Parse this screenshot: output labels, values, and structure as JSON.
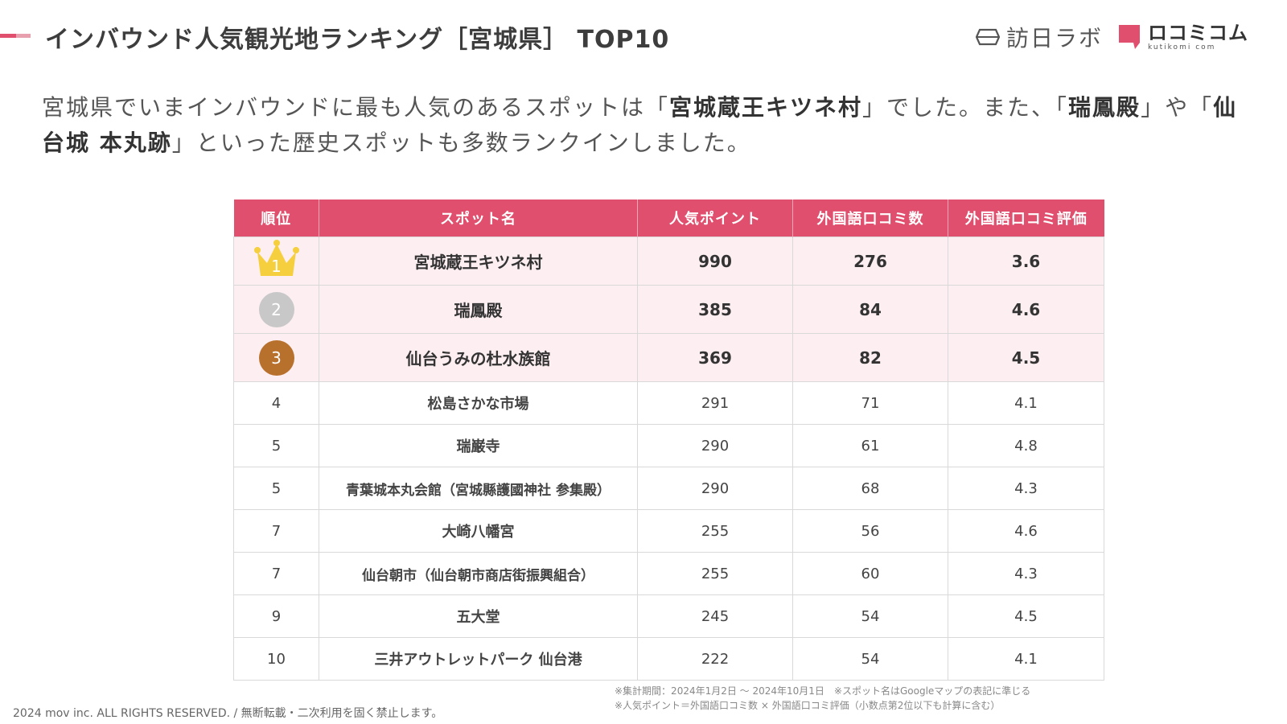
{
  "header": {
    "title": "インバウンド人気観光地ランキング［宮城県］ TOP10",
    "logo_houjitsu": "訪日ラボ",
    "logo_kuchikomi": "ロコミコム",
    "logo_kuchikomi_sub": "kutikomi com"
  },
  "lead": {
    "p1": "宮城県でいまインバウンドに最も人気のあるスポットは「",
    "b1": "宮城蔵王キツネ村",
    "p2": "」でした。また、「",
    "b2": "瑞鳳殿",
    "p3": "」や「",
    "b3": "仙台城 本丸跡",
    "p4": "」といった歴史スポットも多数ランクインしました。"
  },
  "table": {
    "headers": [
      "順位",
      "スポット名",
      "人気ポイント",
      "外国語口コミ数",
      "外国語口コミ評価"
    ],
    "rows": [
      {
        "rank": "1",
        "name": "宮城蔵王キツネ村",
        "points": "990",
        "reviews": "276",
        "rating": "3.6"
      },
      {
        "rank": "2",
        "name": "瑞鳳殿",
        "points": "385",
        "reviews": "84",
        "rating": "4.6"
      },
      {
        "rank": "3",
        "name": "仙台うみの杜水族館",
        "points": "369",
        "reviews": "82",
        "rating": "4.5"
      },
      {
        "rank": "4",
        "name": "松島さかな市場",
        "points": "291",
        "reviews": "71",
        "rating": "4.1"
      },
      {
        "rank": "5",
        "name": "瑞巌寺",
        "points": "290",
        "reviews": "61",
        "rating": "4.8"
      },
      {
        "rank": "5",
        "name": "青葉城本丸会館（宮城縣護國神社 参集殿）",
        "points": "290",
        "reviews": "68",
        "rating": "4.3"
      },
      {
        "rank": "7",
        "name": "大崎八幡宮",
        "points": "255",
        "reviews": "56",
        "rating": "4.6"
      },
      {
        "rank": "7",
        "name": "仙台朝市（仙台朝市商店街振興組合）",
        "points": "255",
        "reviews": "60",
        "rating": "4.3"
      },
      {
        "rank": "9",
        "name": "五大堂",
        "points": "245",
        "reviews": "54",
        "rating": "4.5"
      },
      {
        "rank": "10",
        "name": "三井アウトレットパーク 仙台港",
        "points": "222",
        "reviews": "54",
        "rating": "4.1"
      }
    ]
  },
  "notes": {
    "line1": "※集計期間：2024年1月2日 〜 2024年10月1日　※スポット名はGoogleマップの表記に準じる",
    "line2": "※人気ポイント＝外国語口コミ数 × 外国語口コミ評価（小数点第2位以下も計算に含む）"
  },
  "footer": {
    "copyright": "2024 mov inc. ALL RIGHTS RESERVED. / 無断転載・二次利用を固く禁止します。"
  },
  "colors": {
    "accent": "#e0506e",
    "row_highlight": "#fdeef1",
    "gold": "#f6cf3e",
    "silver": "#c8c8c8",
    "bronze": "#b8702d"
  }
}
